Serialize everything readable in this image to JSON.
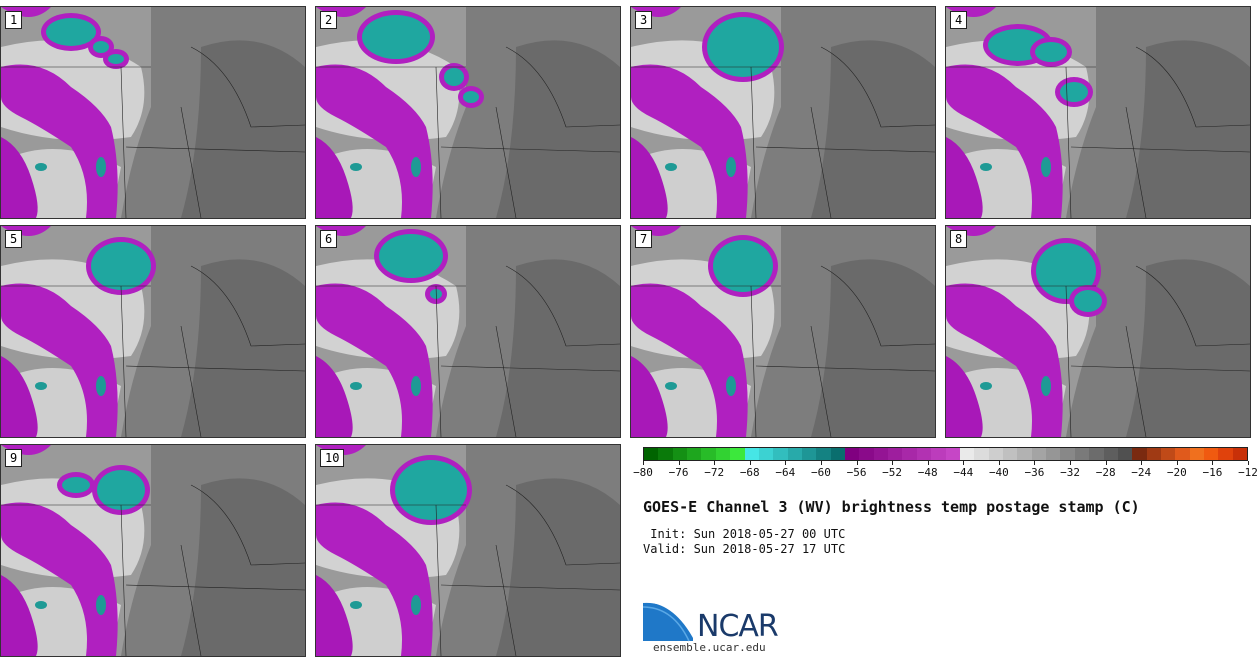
{
  "panels": [
    {
      "label": "1"
    },
    {
      "label": "2"
    },
    {
      "label": "3"
    },
    {
      "label": "4"
    },
    {
      "label": "5"
    },
    {
      "label": "6"
    },
    {
      "label": "7"
    },
    {
      "label": "8"
    },
    {
      "label": "9"
    },
    {
      "label": "10"
    }
  ],
  "colorbar": {
    "colors": [
      "#006400",
      "#0a7a0a",
      "#149014",
      "#1ea61e",
      "#28bc28",
      "#32d232",
      "#3ce83c",
      "#46e6e6",
      "#3cd2d2",
      "#32bebe",
      "#28aaaa",
      "#1e9696",
      "#148282",
      "#0a6e6e",
      "#800080",
      "#8a0a8a",
      "#941494",
      "#9e1e9e",
      "#a828a8",
      "#b232b2",
      "#bc3cbc",
      "#c646c6",
      "#eaeaea",
      "#dcdcdc",
      "#cecece",
      "#c0c0c0",
      "#b2b2b2",
      "#a4a4a4",
      "#969696",
      "#888888",
      "#7a7a7a",
      "#6c6c6c",
      "#5e5e5e",
      "#505050",
      "#7a2a10",
      "#a03a14",
      "#c04a18",
      "#e05a1c",
      "#f0701e",
      "#f05a10",
      "#e0420c",
      "#c83008"
    ],
    "tick_labels": [
      "−80",
      "−76",
      "−72",
      "−68",
      "−64",
      "−60",
      "−56",
      "−52",
      "−48",
      "−44",
      "−40",
      "−36",
      "−32",
      "−28",
      "−24",
      "−20",
      "−16",
      "−12"
    ]
  },
  "title": "GOES-E Channel 3 (WV) brightness temp postage stamp (C)",
  "init_text": " Init: Sun 2018-05-27 00 UTC",
  "valid_text": "Valid: Sun 2018-05-27 17 UTC",
  "logo": {
    "name": "NCAR",
    "url": "ensemble.ucar.edu"
  }
}
